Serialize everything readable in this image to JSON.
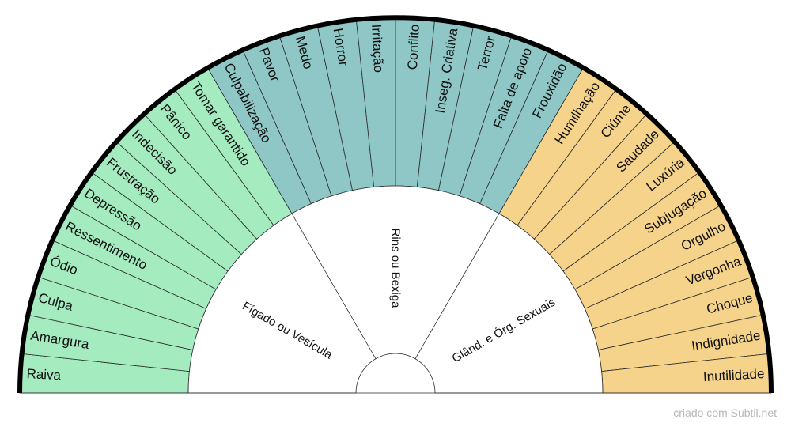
{
  "groups": [
    {
      "name": "Fígado ou Vesícula",
      "color": "#a4ebc0",
      "items": [
        "Raiva",
        "Amargura",
        "Culpa",
        "Ódio",
        "Ressentimento",
        "Depressão",
        "Frustração",
        "Indecisão",
        "Pânico",
        "Tomar garantido"
      ]
    },
    {
      "name": "Rins ou Bexiga",
      "color": "#8fc6c6",
      "items": [
        "Culpabilização",
        "Pavor",
        "Medo",
        "Horror",
        "Irritação",
        "Conflito",
        "Inseg. Criativa",
        "Terror",
        "Falta de apoio",
        "Frouxidão"
      ]
    },
    {
      "name": "Glând. e Órg. Sexuais",
      "color": "#f5d38b",
      "items": [
        "Humilhação",
        "Ciúme",
        "Saudade",
        "Luxúria",
        "Subjugação",
        "Orgulho",
        "Vergonha",
        "Choque",
        "Indignidade",
        "Inutilidade"
      ]
    }
  ],
  "credit": "criado com Subtil.net"
}
